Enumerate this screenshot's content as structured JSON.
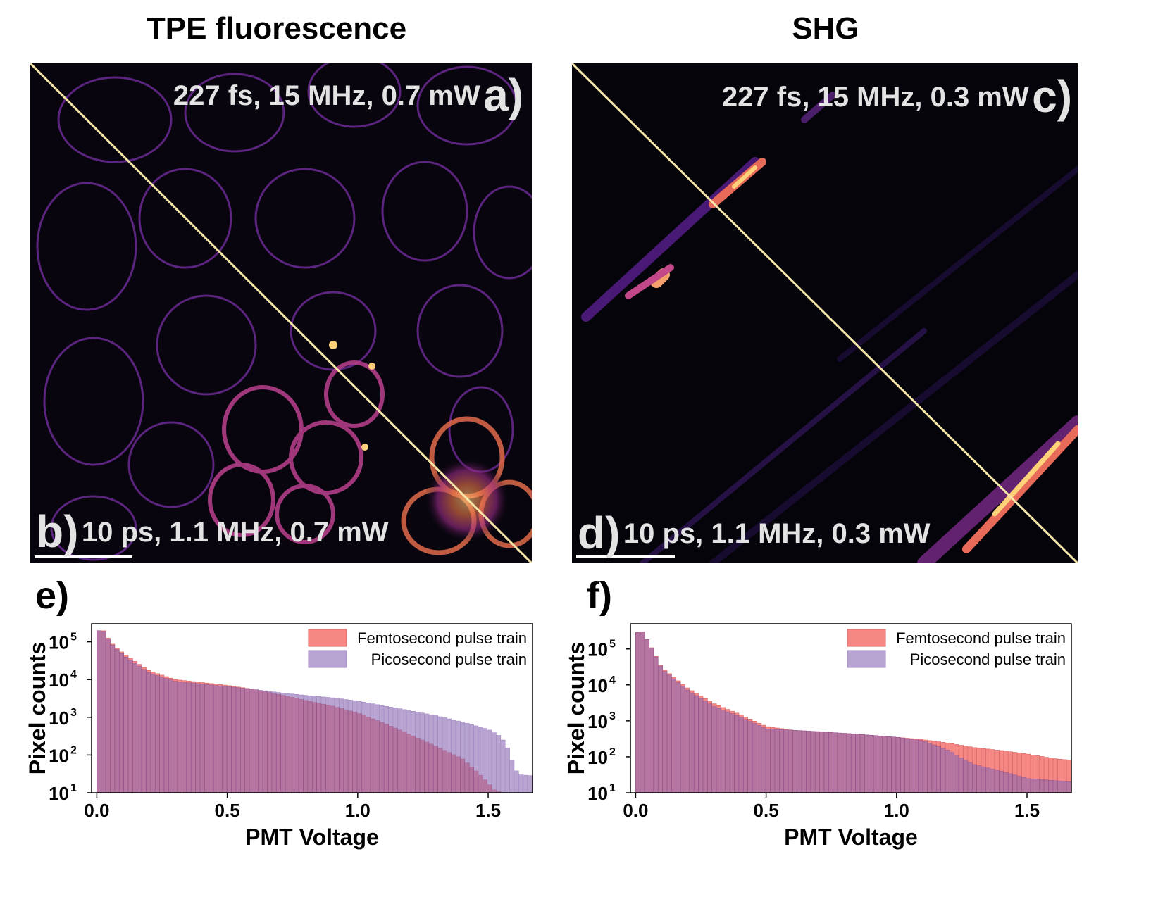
{
  "columns": {
    "left_title": "TPE fluorescence",
    "right_title": "SHG"
  },
  "images": {
    "a": {
      "letter": "a)",
      "text": "227 fs, 15 MHz, 0.7 mW"
    },
    "b": {
      "letter": "b)",
      "text": "10 ps, 1.1 MHz, 0.7 mW"
    },
    "c": {
      "letter": "c)",
      "text": "227 fs, 15 MHz, 0.3 mW"
    },
    "d": {
      "letter": "d)",
      "text": "10 ps, 1.1 MHz, 0.3 mW"
    }
  },
  "panel_labels": {
    "e": "e)",
    "f": "f)"
  },
  "chart_data": [
    {
      "type": "bar",
      "panel": "e",
      "xlabel": "PMT Voltage",
      "ylabel": "Pixel counts",
      "xlim": [
        -0.02,
        1.67
      ],
      "ylim": [
        10,
        300000
      ],
      "yscale": "log",
      "xticks": [
        "0.0",
        "0.5",
        "1.0",
        "1.5"
      ],
      "yticks": [
        "10^1",
        "10^2",
        "10^3",
        "10^4",
        "10^5"
      ],
      "legend_position": "top-right",
      "colors": {
        "fs": "#f4736f",
        "ps": "#8d6db4"
      },
      "series": [
        {
          "name": "Femtosecond pulse train",
          "key": "fs",
          "points": [
            [
              0.0,
              100000
            ],
            [
              0.01,
              220000
            ],
            [
              0.03,
              190000
            ],
            [
              0.05,
              100000
            ],
            [
              0.1,
              50000
            ],
            [
              0.2,
              17000
            ],
            [
              0.3,
              10000
            ],
            [
              0.5,
              7000
            ],
            [
              0.6,
              5500
            ],
            [
              0.7,
              4000
            ],
            [
              0.8,
              2800
            ],
            [
              0.9,
              2000
            ],
            [
              1.0,
              1300
            ],
            [
              1.1,
              700
            ],
            [
              1.2,
              350
            ],
            [
              1.3,
              170
            ],
            [
              1.4,
              80
            ],
            [
              1.45,
              40
            ],
            [
              1.5,
              18
            ],
            [
              1.52,
              12
            ],
            [
              1.56,
              10
            ],
            [
              1.67,
              10
            ]
          ]
        },
        {
          "name": "Picosecond pulse train",
          "key": "ps",
          "points": [
            [
              0.0,
              100000
            ],
            [
              0.01,
              220000
            ],
            [
              0.03,
              180000
            ],
            [
              0.05,
              95000
            ],
            [
              0.1,
              45000
            ],
            [
              0.2,
              15000
            ],
            [
              0.3,
              9000
            ],
            [
              0.5,
              6500
            ],
            [
              0.6,
              5500
            ],
            [
              0.7,
              4500
            ],
            [
              0.8,
              3800
            ],
            [
              0.9,
              3300
            ],
            [
              1.0,
              2700
            ],
            [
              1.1,
              2000
            ],
            [
              1.2,
              1500
            ],
            [
              1.3,
              1100
            ],
            [
              1.4,
              750
            ],
            [
              1.5,
              480
            ],
            [
              1.55,
              300
            ],
            [
              1.58,
              130
            ],
            [
              1.6,
              45
            ],
            [
              1.62,
              30
            ],
            [
              1.67,
              28
            ]
          ]
        }
      ]
    },
    {
      "type": "bar",
      "panel": "f",
      "xlabel": "PMT Voltage",
      "ylabel": "Pixel counts",
      "xlim": [
        -0.02,
        1.67
      ],
      "ylim": [
        10,
        500000
      ],
      "yscale": "log",
      "xticks": [
        "0.0",
        "0.5",
        "1.0",
        "1.5"
      ],
      "yticks": [
        "10^1",
        "10^2",
        "10^3",
        "10^4",
        "10^5"
      ],
      "legend_position": "top-right",
      "colors": {
        "fs": "#f4736f",
        "ps": "#8d6db4"
      },
      "series": [
        {
          "name": "Femtosecond pulse train",
          "key": "fs",
          "points": [
            [
              0.0,
              250000
            ],
            [
              0.02,
              350000
            ],
            [
              0.05,
              150000
            ],
            [
              0.1,
              30000
            ],
            [
              0.2,
              8000
            ],
            [
              0.3,
              3000
            ],
            [
              0.4,
              1500
            ],
            [
              0.5,
              700
            ],
            [
              0.6,
              550
            ],
            [
              0.7,
              500
            ],
            [
              0.8,
              450
            ],
            [
              0.9,
              400
            ],
            [
              1.0,
              350
            ],
            [
              1.1,
              300
            ],
            [
              1.2,
              240
            ],
            [
              1.3,
              180
            ],
            [
              1.4,
              150
            ],
            [
              1.5,
              120
            ],
            [
              1.6,
              90
            ],
            [
              1.67,
              80
            ]
          ]
        },
        {
          "name": "Picosecond pulse train",
          "key": "ps",
          "points": [
            [
              0.0,
              250000
            ],
            [
              0.02,
              350000
            ],
            [
              0.05,
              150000
            ],
            [
              0.1,
              28000
            ],
            [
              0.2,
              7000
            ],
            [
              0.3,
              2500
            ],
            [
              0.4,
              1300
            ],
            [
              0.5,
              600
            ],
            [
              0.6,
              550
            ],
            [
              0.7,
              500
            ],
            [
              0.8,
              450
            ],
            [
              0.9,
              400
            ],
            [
              1.0,
              350
            ],
            [
              1.1,
              280
            ],
            [
              1.2,
              150
            ],
            [
              1.25,
              90
            ],
            [
              1.3,
              60
            ],
            [
              1.4,
              40
            ],
            [
              1.5,
              25
            ],
            [
              1.6,
              22
            ],
            [
              1.67,
              20
            ]
          ]
        }
      ]
    }
  ]
}
